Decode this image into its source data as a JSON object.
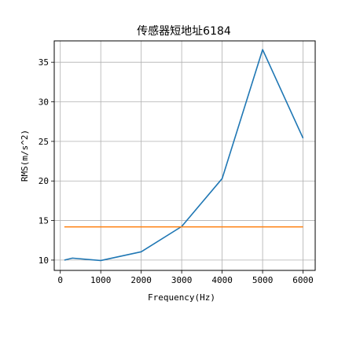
{
  "chart_data": {
    "type": "line",
    "title": "传感器短地址6184",
    "xlabel": "Frequency(Hz)",
    "ylabel": "RMS(m/s^2)",
    "xlim": [
      -150,
      6300
    ],
    "ylim": [
      8.7,
      37.7
    ],
    "xticks": [
      0,
      1000,
      2000,
      3000,
      4000,
      5000,
      6000
    ],
    "yticks": [
      10,
      15,
      20,
      25,
      30,
      35
    ],
    "grid": true,
    "series": [
      {
        "color": "#1f77b4",
        "x": [
          100,
          300,
          1000,
          2000,
          3000,
          4000,
          5000,
          6000
        ],
        "y": [
          10.0,
          10.25,
          9.95,
          11.05,
          14.25,
          20.3,
          36.6,
          25.4
        ]
      },
      {
        "color": "#ff7f0e",
        "x": [
          100,
          6000
        ],
        "y": [
          14.2,
          14.2
        ]
      }
    ]
  }
}
